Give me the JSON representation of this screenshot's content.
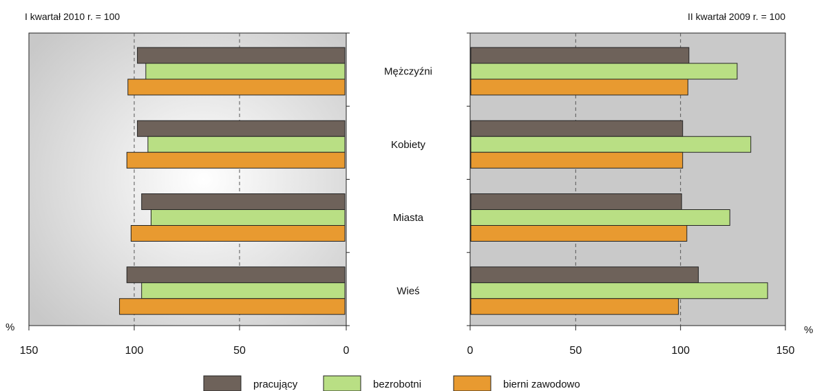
{
  "chart_data": [
    {
      "type": "bar",
      "orientation": "horizontal",
      "direction": "reversed",
      "subtitle": "I kwartał 2010 r. = 100",
      "unit_label": "%",
      "xlim": [
        0,
        150
      ],
      "x_ticks": [
        150,
        100,
        50,
        0
      ],
      "gridlines": [
        50,
        100
      ],
      "categories": [
        "Mężczyźni",
        "Kobiety",
        "Miasta",
        "Wieś"
      ],
      "series": [
        {
          "name": "pracujący",
          "values": [
            98.5,
            98.5,
            96.5,
            103.5
          ]
        },
        {
          "name": "bezrobotni",
          "values": [
            94.5,
            93.5,
            92,
            96.5
          ]
        },
        {
          "name": "bierni zawodowo",
          "values": [
            103,
            103.5,
            101.5,
            107
          ]
        }
      ]
    },
    {
      "type": "bar",
      "orientation": "horizontal",
      "subtitle": "II kwartał 2009 r. = 100",
      "unit_label": "%",
      "xlim": [
        0,
        150
      ],
      "x_ticks": [
        0,
        50,
        100,
        150
      ],
      "gridlines": [
        50,
        100
      ],
      "categories": [
        "Mężczyźni",
        "Kobiety",
        "Miasta",
        "Wieś"
      ],
      "series": [
        {
          "name": "pracujący",
          "values": [
            104,
            101,
            100.5,
            108.5
          ]
        },
        {
          "name": "bezrobotni",
          "values": [
            127,
            133.5,
            123.5,
            141.5
          ]
        },
        {
          "name": "bierni zawodowo",
          "values": [
            103.5,
            101,
            103,
            99
          ]
        }
      ]
    }
  ],
  "legend": [
    {
      "label": "pracujący",
      "color": "#6e625a"
    },
    {
      "label": "bezrobotni",
      "color": "#b9df84"
    },
    {
      "label": "bierni zawodowo",
      "color": "#e89a30"
    }
  ],
  "colors": {
    "panel_right_bg": "#c9c9c9",
    "panel_left_edge": "#c8c8c8",
    "panel_left_center": "#ffffff",
    "grid": "#555555"
  }
}
